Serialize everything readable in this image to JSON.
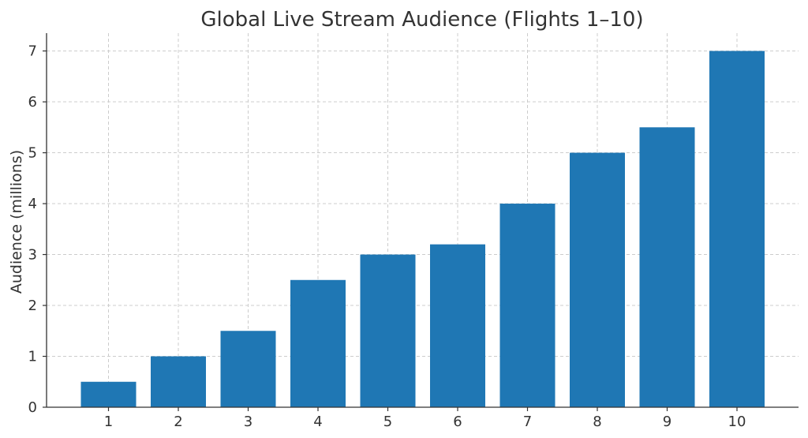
{
  "chart_data": {
    "type": "bar",
    "title": "Global Live Stream Audience (Flights 1–10)",
    "xlabel": "",
    "ylabel": "Audience (millions)",
    "categories": [
      "1",
      "2",
      "3",
      "4",
      "5",
      "6",
      "7",
      "8",
      "9",
      "10"
    ],
    "values": [
      0.5,
      1.0,
      1.5,
      2.5,
      3.0,
      3.2,
      4.0,
      5.0,
      5.5,
      7.0
    ],
    "ylim": [
      0,
      7.35
    ],
    "yticks": [
      0,
      1,
      2,
      3,
      4,
      5,
      6,
      7
    ],
    "grid": true,
    "bar_color": "#1f77b4"
  }
}
